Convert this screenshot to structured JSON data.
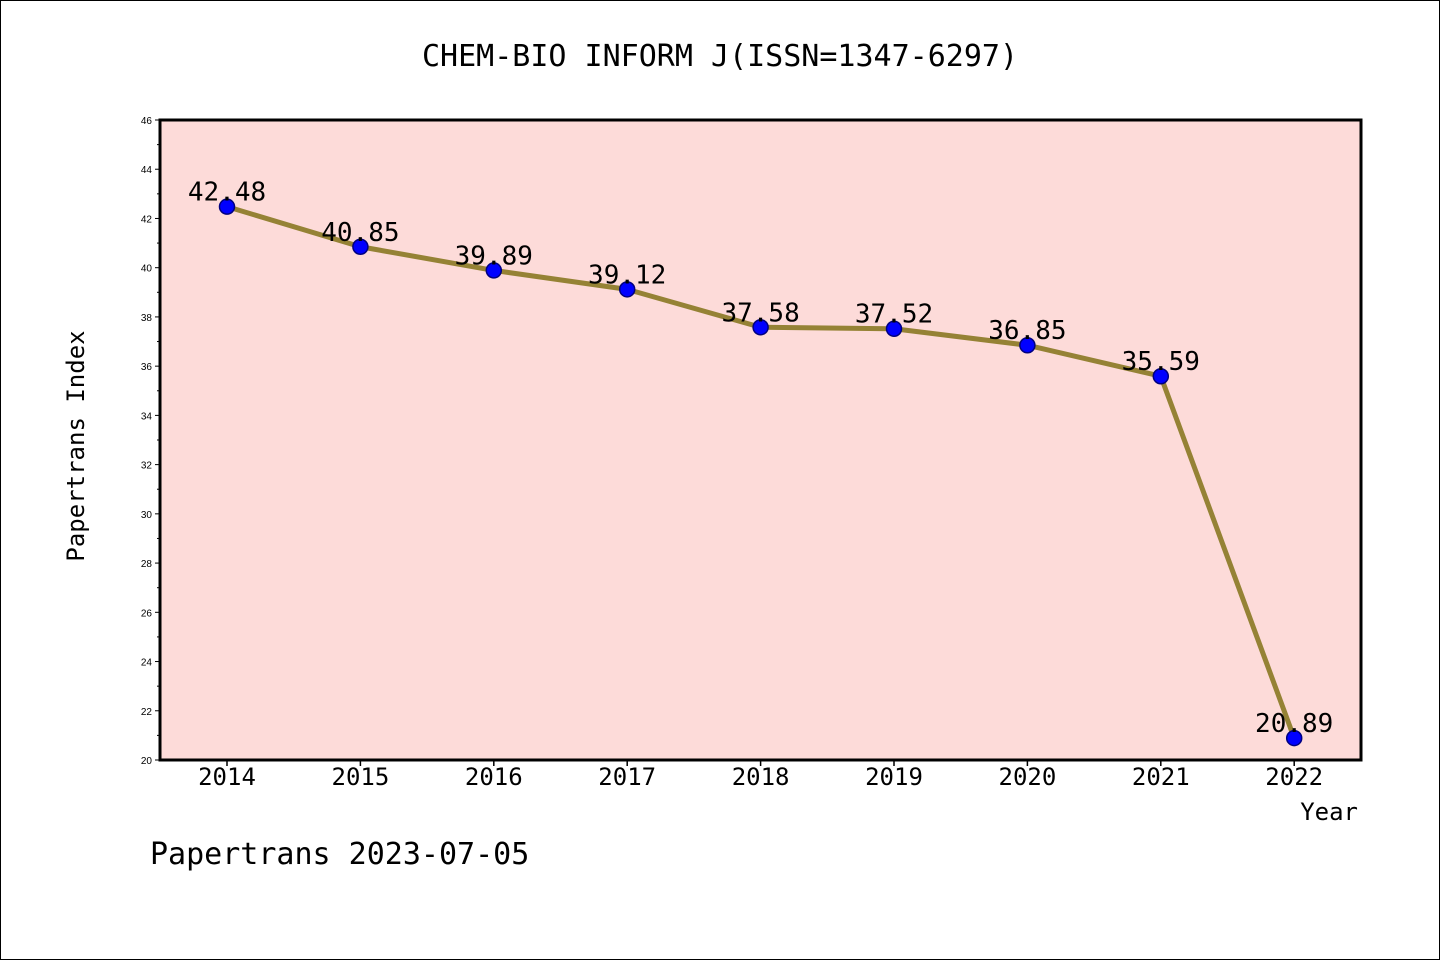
{
  "chart_data": {
    "type": "line",
    "title": "CHEM-BIO INFORM J(ISSN=1347-6297)",
    "xlabel": "Year",
    "ylabel": "Papertrans Index",
    "categories": [
      "2014",
      "2015",
      "2016",
      "2017",
      "2018",
      "2019",
      "2020",
      "2021",
      "2022"
    ],
    "series": [
      {
        "values": [
          42.48,
          40.85,
          39.89,
          39.12,
          37.58,
          37.52,
          36.85,
          35.59,
          20.89
        ]
      }
    ],
    "data_labels": [
      "42.48",
      "40.85",
      "39.89",
      "39.12",
      "37.58",
      "37.52",
      "36.85",
      "35.59",
      "20.89"
    ],
    "ylim": [
      20,
      46
    ],
    "yticks": [
      "20",
      "22",
      "24",
      "26",
      "28",
      "30",
      "32",
      "34",
      "36",
      "38",
      "40",
      "42",
      "44",
      "46"
    ],
    "grid": false,
    "legend": "none",
    "colors": {
      "plot_background": "#fddbd9",
      "line": "#958235",
      "marker_fill": "#0000ff",
      "marker_stroke": "#000080"
    }
  },
  "footer": "Papertrans 2023-07-05"
}
